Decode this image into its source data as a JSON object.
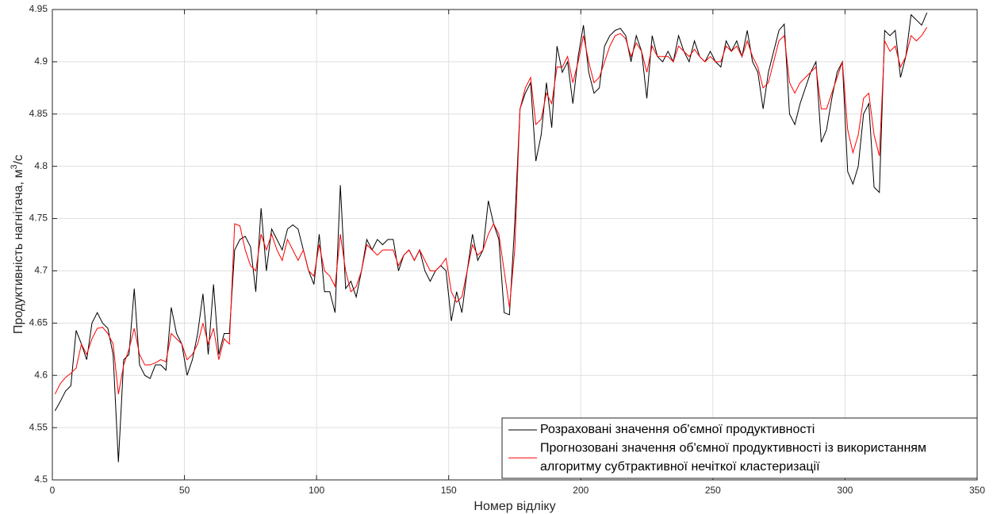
{
  "chart_data": {
    "type": "line",
    "xlabel": "Номер відліку",
    "ylabel": {
      "text": "Продуктивність нагнітача, м",
      "sup": "3",
      "after": "/с"
    },
    "x": [
      1,
      3,
      5,
      7,
      9,
      11,
      13,
      15,
      17,
      19,
      21,
      23,
      25,
      27,
      29,
      31,
      33,
      35,
      37,
      39,
      41,
      43,
      45,
      47,
      49,
      51,
      53,
      55,
      57,
      59,
      61,
      63,
      65,
      67,
      69,
      71,
      73,
      75,
      77,
      79,
      81,
      83,
      85,
      87,
      89,
      91,
      93,
      95,
      97,
      99,
      101,
      103,
      105,
      107,
      109,
      111,
      113,
      115,
      117,
      119,
      121,
      123,
      125,
      127,
      129,
      131,
      133,
      135,
      137,
      139,
      141,
      143,
      145,
      147,
      149,
      151,
      153,
      155,
      157,
      159,
      161,
      163,
      165,
      167,
      169,
      171,
      173,
      175,
      177,
      179,
      181,
      183,
      185,
      187,
      189,
      191,
      193,
      195,
      197,
      199,
      201,
      203,
      205,
      207,
      209,
      211,
      213,
      215,
      217,
      219,
      221,
      223,
      225,
      227,
      229,
      231,
      233,
      235,
      237,
      239,
      241,
      243,
      245,
      247,
      249,
      251,
      253,
      255,
      257,
      259,
      261,
      263,
      265,
      267,
      269,
      271,
      273,
      275,
      277,
      279,
      281,
      283,
      285,
      287,
      289,
      291,
      293,
      295,
      297,
      299,
      301,
      303,
      305,
      307,
      309,
      311,
      313,
      315,
      317,
      319,
      321,
      323,
      325,
      327,
      329,
      331
    ],
    "series": [
      {
        "name": [
          "Розраховані значення об'ємної продуктивності"
        ],
        "color": "#000000",
        "values": [
          4.566,
          4.575,
          4.585,
          4.59,
          4.643,
          4.63,
          4.615,
          4.65,
          4.66,
          4.65,
          4.645,
          4.62,
          4.517,
          4.615,
          4.62,
          4.683,
          4.61,
          4.6,
          4.597,
          4.61,
          4.61,
          4.605,
          4.665,
          4.64,
          4.63,
          4.6,
          4.615,
          4.64,
          4.678,
          4.62,
          4.687,
          4.62,
          4.64,
          4.64,
          4.72,
          4.73,
          4.733,
          4.723,
          4.68,
          4.76,
          4.7,
          4.74,
          4.73,
          4.72,
          4.74,
          4.744,
          4.74,
          4.72,
          4.7,
          4.687,
          4.735,
          4.68,
          4.68,
          4.66,
          4.782,
          4.683,
          4.69,
          4.675,
          4.7,
          4.73,
          4.72,
          4.73,
          4.725,
          4.73,
          4.73,
          4.7,
          4.715,
          4.72,
          4.71,
          4.72,
          4.7,
          4.69,
          4.7,
          4.705,
          4.7,
          4.652,
          4.68,
          4.66,
          4.7,
          4.735,
          4.71,
          4.72,
          4.767,
          4.745,
          4.73,
          4.66,
          4.658,
          4.745,
          4.855,
          4.87,
          4.88,
          4.805,
          4.83,
          4.88,
          4.837,
          4.915,
          4.89,
          4.9,
          4.86,
          4.905,
          4.935,
          4.89,
          4.87,
          4.875,
          4.915,
          4.925,
          4.93,
          4.932,
          4.925,
          4.9,
          4.925,
          4.91,
          4.865,
          4.925,
          4.905,
          4.9,
          4.91,
          4.9,
          4.925,
          4.91,
          4.9,
          4.92,
          4.905,
          4.9,
          4.91,
          4.9,
          4.895,
          4.92,
          4.91,
          4.92,
          4.905,
          4.93,
          4.9,
          4.89,
          4.855,
          4.89,
          4.91,
          4.93,
          4.936,
          4.85,
          4.84,
          4.86,
          4.875,
          4.89,
          4.9,
          4.823,
          4.835,
          4.865,
          4.89,
          4.9,
          4.795,
          4.783,
          4.8,
          4.85,
          4.86,
          4.78,
          4.775,
          4.93,
          4.925,
          4.93,
          4.885,
          4.905,
          4.945,
          4.94,
          4.935,
          4.947
        ]
      },
      {
        "name": [
          "Прогнозовані значення об'ємної продуктивності із використанням",
          "алгоритму субтрактивної нечіткої кластеризації"
        ],
        "color": "#ff0000",
        "values": [
          4.582,
          4.592,
          4.598,
          4.602,
          4.607,
          4.63,
          4.62,
          4.635,
          4.645,
          4.646,
          4.64,
          4.63,
          4.582,
          4.61,
          4.625,
          4.645,
          4.62,
          4.61,
          4.61,
          4.612,
          4.615,
          4.613,
          4.64,
          4.635,
          4.63,
          4.615,
          4.62,
          4.63,
          4.65,
          4.63,
          4.645,
          4.615,
          4.635,
          4.63,
          4.745,
          4.743,
          4.72,
          4.705,
          4.7,
          4.735,
          4.72,
          4.735,
          4.72,
          4.71,
          4.73,
          4.72,
          4.71,
          4.72,
          4.7,
          4.695,
          4.725,
          4.7,
          4.695,
          4.685,
          4.735,
          4.7,
          4.68,
          4.685,
          4.7,
          4.725,
          4.72,
          4.715,
          4.72,
          4.72,
          4.72,
          4.705,
          4.715,
          4.72,
          4.71,
          4.72,
          4.71,
          4.7,
          4.7,
          4.705,
          4.712,
          4.68,
          4.67,
          4.675,
          4.7,
          4.725,
          4.715,
          4.72,
          4.735,
          4.745,
          4.735,
          4.7,
          4.665,
          4.72,
          4.855,
          4.875,
          4.885,
          4.84,
          4.845,
          4.87,
          4.86,
          4.895,
          4.895,
          4.905,
          4.88,
          4.9,
          4.925,
          4.9,
          4.88,
          4.885,
          4.9,
          4.915,
          4.925,
          4.927,
          4.922,
          4.905,
          4.918,
          4.91,
          4.89,
          4.915,
          4.905,
          4.905,
          4.905,
          4.9,
          4.915,
          4.91,
          4.905,
          4.912,
          4.905,
          4.9,
          4.905,
          4.9,
          4.9,
          4.915,
          4.91,
          4.915,
          4.905,
          4.92,
          4.905,
          4.895,
          4.875,
          4.88,
          4.9,
          4.92,
          4.925,
          4.88,
          4.87,
          4.88,
          4.885,
          4.89,
          4.895,
          4.855,
          4.855,
          4.87,
          4.885,
          4.9,
          4.835,
          4.813,
          4.83,
          4.865,
          4.87,
          4.83,
          4.81,
          4.92,
          4.91,
          4.915,
          4.895,
          4.905,
          4.925,
          4.92,
          4.925,
          4.933
        ]
      }
    ],
    "xlim": [
      0,
      350
    ],
    "xticks": [
      0,
      50,
      100,
      150,
      200,
      250,
      300,
      350
    ],
    "ylim": [
      4.5,
      4.95
    ],
    "yticks": [
      4.5,
      4.55,
      4.6,
      4.65,
      4.7,
      4.75,
      4.8,
      4.85,
      4.9,
      4.95
    ],
    "grid": true,
    "legend": "lower right"
  }
}
